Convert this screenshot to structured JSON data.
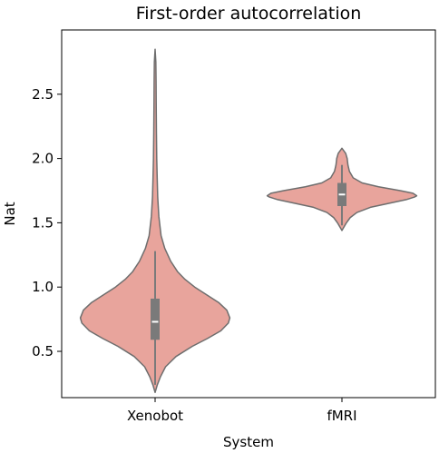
{
  "chart_data": {
    "type": "violin",
    "title": "First-order autocorrelation",
    "xlabel": "System",
    "ylabel": "Nat",
    "categories": [
      "Xenobot",
      "fMRI"
    ],
    "ylim": [
      0.14,
      3.0
    ],
    "yticks": [
      0.5,
      1.0,
      1.5,
      2.0,
      2.5
    ],
    "ytick_labels": [
      "0.5",
      "1.0",
      "1.5",
      "2.0",
      "2.5"
    ],
    "grid": false,
    "fill_color": "#e8a49c",
    "edge_color": "#6e6e6e",
    "box_color": "#7a7a7a",
    "median_color": "#ffffff",
    "violins": [
      {
        "category": "Xenobot",
        "min": 0.18,
        "max": 2.85,
        "q1": 0.59,
        "median": 0.73,
        "q3": 0.91,
        "whisker_low": 0.24,
        "whisker_high": 1.28,
        "density": [
          [
            0.18,
            0.0
          ],
          [
            0.24,
            0.03
          ],
          [
            0.3,
            0.07
          ],
          [
            0.38,
            0.14
          ],
          [
            0.46,
            0.28
          ],
          [
            0.54,
            0.5
          ],
          [
            0.6,
            0.7
          ],
          [
            0.66,
            0.88
          ],
          [
            0.72,
            0.98
          ],
          [
            0.76,
            1.0
          ],
          [
            0.82,
            0.96
          ],
          [
            0.88,
            0.85
          ],
          [
            0.94,
            0.69
          ],
          [
            1.0,
            0.53
          ],
          [
            1.06,
            0.4
          ],
          [
            1.12,
            0.3
          ],
          [
            1.2,
            0.21
          ],
          [
            1.3,
            0.13
          ],
          [
            1.4,
            0.08
          ],
          [
            1.55,
            0.05
          ],
          [
            1.7,
            0.035
          ],
          [
            1.85,
            0.028
          ],
          [
            2.0,
            0.022
          ],
          [
            2.2,
            0.018
          ],
          [
            2.4,
            0.015
          ],
          [
            2.6,
            0.013
          ],
          [
            2.75,
            0.01
          ],
          [
            2.85,
            0.0
          ]
        ]
      },
      {
        "category": "fMRI",
        "min": 1.44,
        "max": 2.08,
        "q1": 1.63,
        "median": 1.72,
        "q3": 1.81,
        "whisker_low": 1.48,
        "whisker_high": 1.95,
        "density": [
          [
            1.44,
            0.0
          ],
          [
            1.47,
            0.03
          ],
          [
            1.5,
            0.06
          ],
          [
            1.54,
            0.11
          ],
          [
            1.58,
            0.2
          ],
          [
            1.62,
            0.38
          ],
          [
            1.65,
            0.62
          ],
          [
            1.68,
            0.86
          ],
          [
            1.7,
            0.97
          ],
          [
            1.71,
            1.0
          ],
          [
            1.73,
            0.95
          ],
          [
            1.75,
            0.78
          ],
          [
            1.78,
            0.49
          ],
          [
            1.81,
            0.27
          ],
          [
            1.85,
            0.15
          ],
          [
            1.9,
            0.1
          ],
          [
            1.95,
            0.08
          ],
          [
            2.0,
            0.07
          ],
          [
            2.04,
            0.05
          ],
          [
            2.08,
            0.0
          ]
        ]
      }
    ]
  }
}
